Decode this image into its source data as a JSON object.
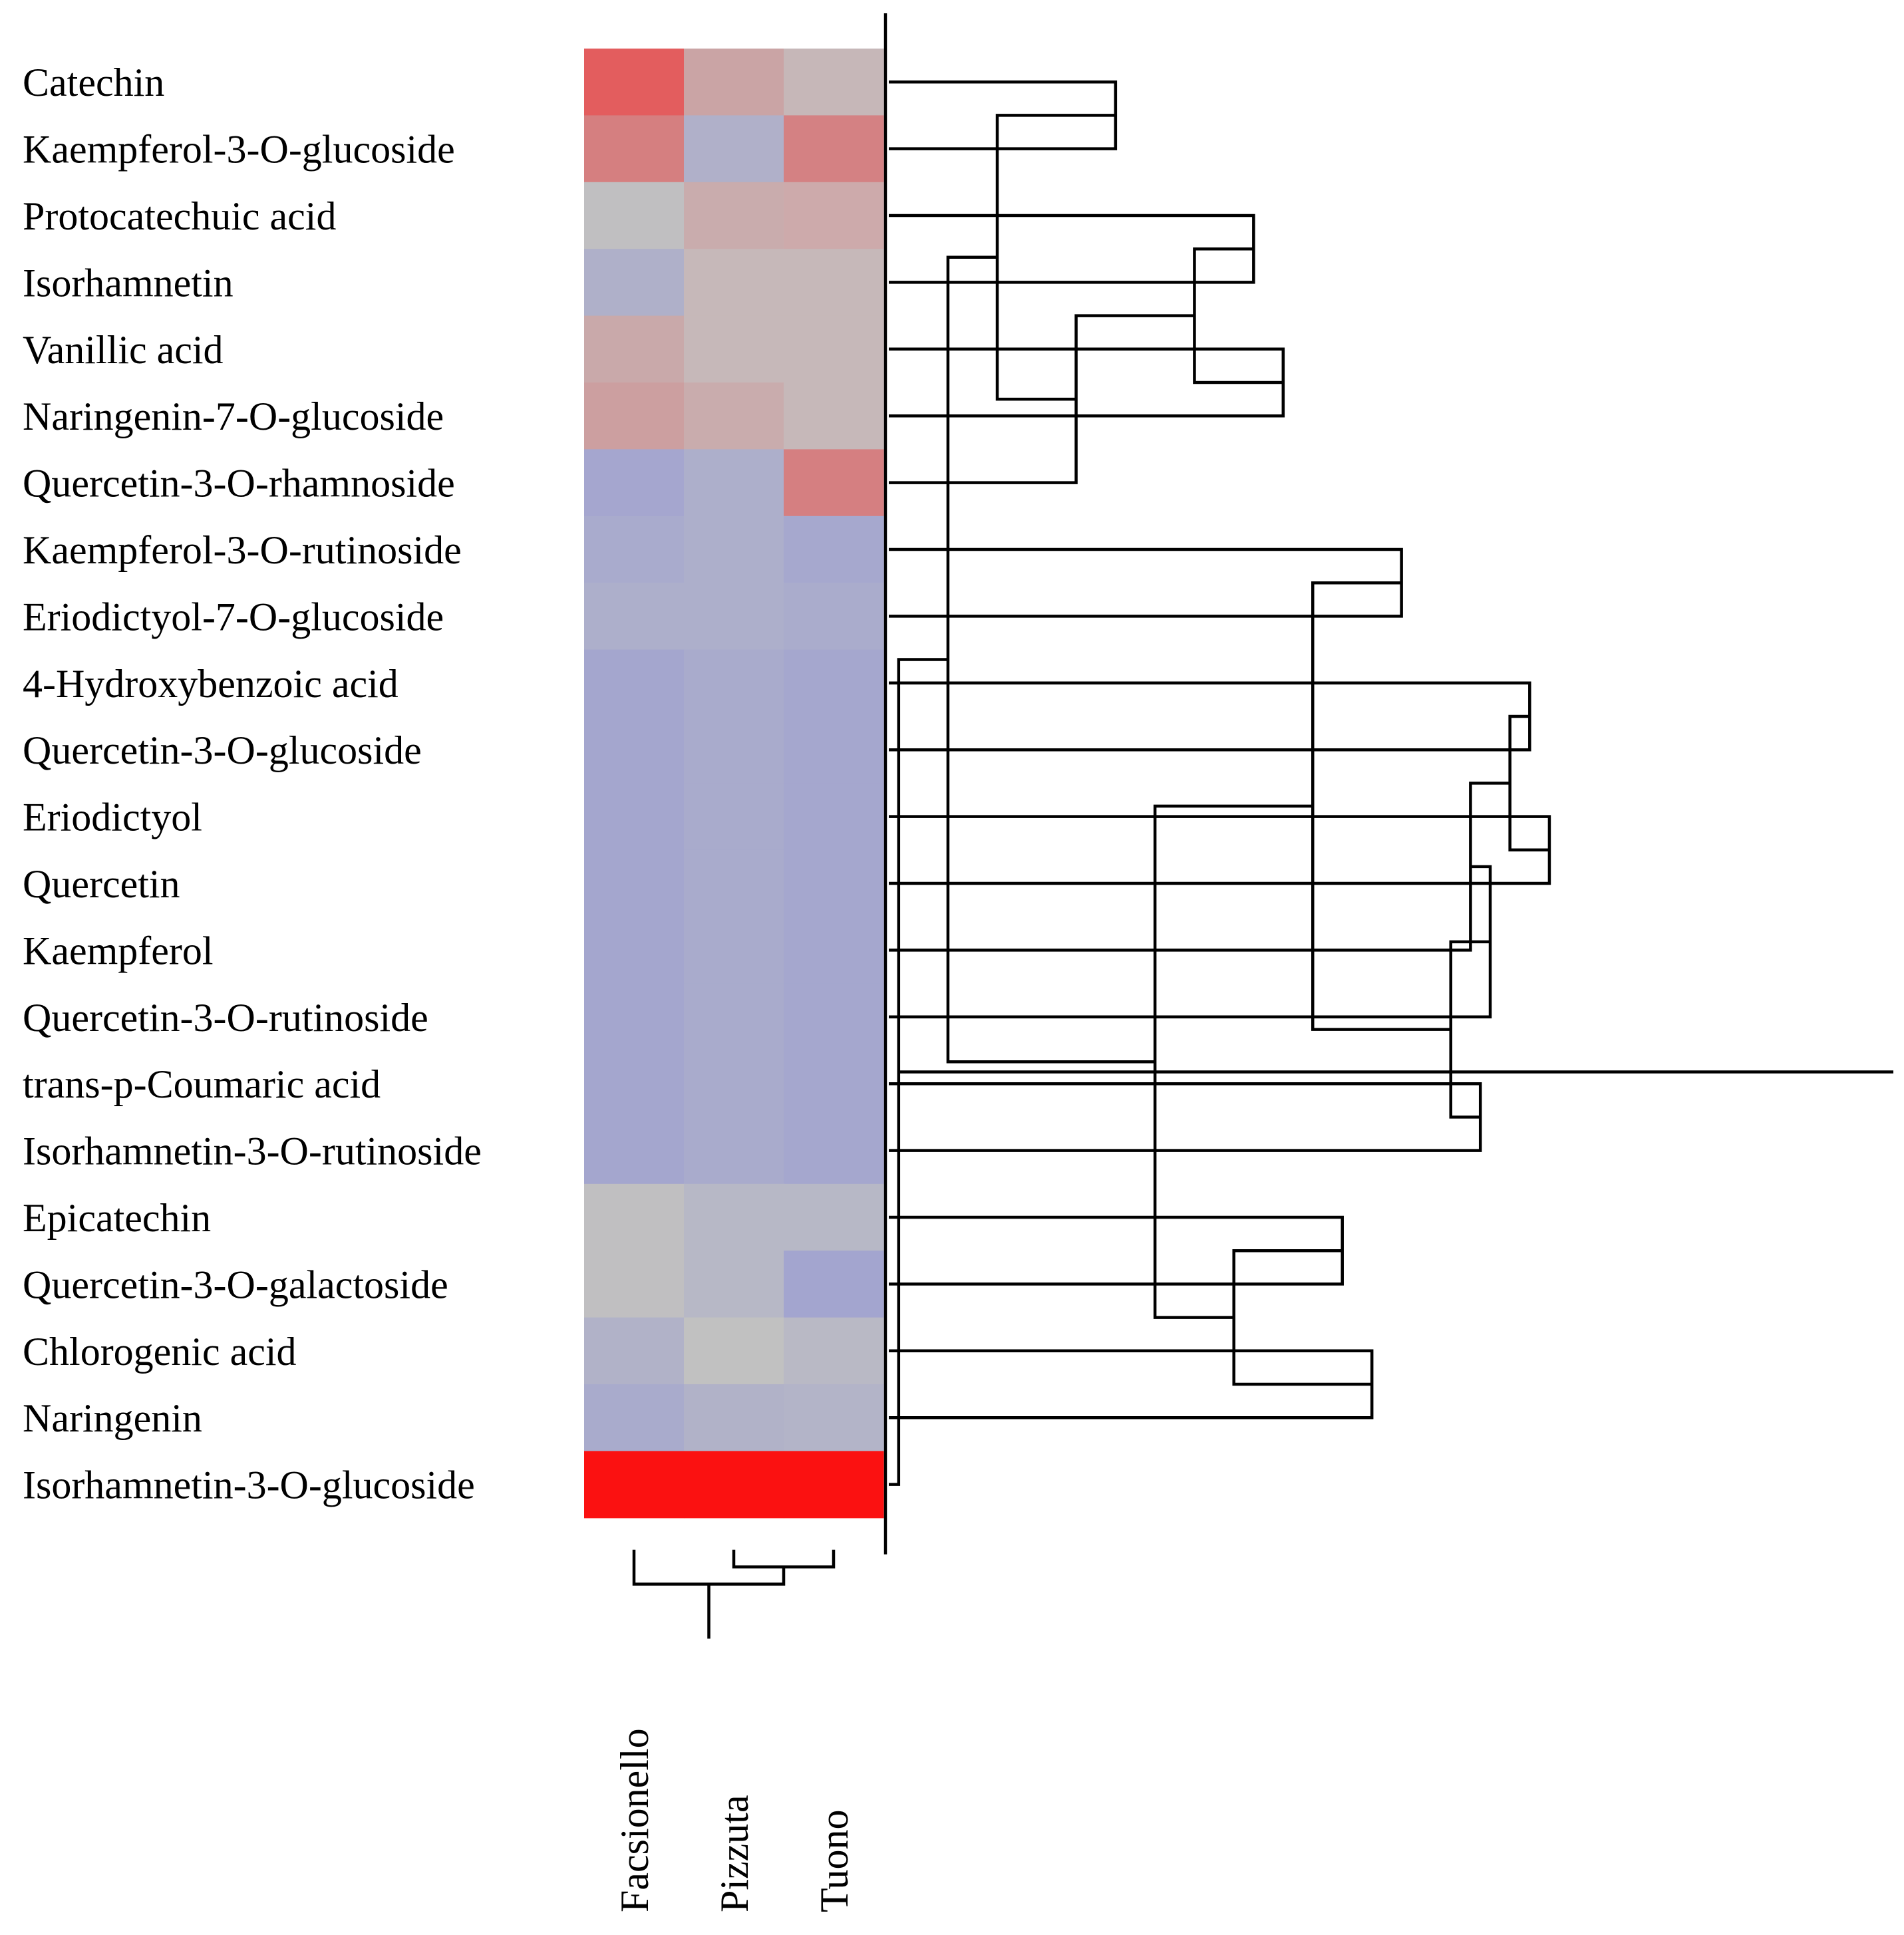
{
  "chart_data": {
    "type": "heatmap",
    "title": "",
    "columns": [
      "Facsionello",
      "Pizzuta",
      "Tuono"
    ],
    "rows": [
      "Catechin",
      "Kaempferol-3-O-glucoside",
      "Protocatechuic acid",
      "Isorhamnetin",
      "Vanillic acid",
      "Naringenin-7-O-glucoside",
      "Quercetin-3-O-rhamnoside",
      "Kaempferol-3-O-rutinoside",
      "Eriodictyol-7-O-glucoside",
      "4-Hydroxybenzoic acid",
      "Quercetin-3-O-glucoside",
      "Eriodictyol",
      "Quercetin",
      "Kaempferol",
      "Quercetin-3-O-rutinoside",
      "trans-p-Coumaric acid",
      "Isorhamnetin-3-O-rutinoside",
      "Epicatechin",
      "Quercetin-3-O-galactoside",
      "Chlorogenic acid",
      "Naringenin",
      "Isorhamnetin-3-O-glucoside"
    ],
    "cell_colors": [
      [
        "#e35d5e",
        "#caa4a5",
        "#c6b7b8"
      ],
      [
        "#d57f80",
        "#b0b0c9",
        "#d48183"
      ],
      [
        "#c0bfc1",
        "#c9acad",
        "#cdaaab"
      ],
      [
        "#afb0c9",
        "#c6b8b9",
        "#c6b8b9"
      ],
      [
        "#c9a9aa",
        "#c6b8b9",
        "#c6b8b9"
      ],
      [
        "#cc9fa0",
        "#c9acad",
        "#c6b8b9"
      ],
      [
        "#a5a6cf",
        "#adafcb",
        "#d57f81"
      ],
      [
        "#a9abcd",
        "#adafcb",
        "#a6a8ce"
      ],
      [
        "#adafcb",
        "#adafcb",
        "#aaaccc"
      ],
      [
        "#a4a6ce",
        "#a9abcc",
        "#a5a7ce"
      ],
      [
        "#a4a6ce",
        "#a9abcc",
        "#a5a7ce"
      ],
      [
        "#a4a6ce",
        "#a9abcc",
        "#a5a7ce"
      ],
      [
        "#a4a6ce",
        "#a9abcc",
        "#a5a7ce"
      ],
      [
        "#a4a6ce",
        "#a9abcc",
        "#a5a7ce"
      ],
      [
        "#a4a6ce",
        "#a9abcc",
        "#a5a7ce"
      ],
      [
        "#a4a6ce",
        "#a9abcc",
        "#a5a7ce"
      ],
      [
        "#a4a6ce",
        "#a9abcc",
        "#a5a7ce"
      ],
      [
        "#c0bfc1",
        "#b7b8c6",
        "#b7b8c6"
      ],
      [
        "#c0bfc1",
        "#b7b8c6",
        "#a3a5cf"
      ],
      [
        "#b1b2c8",
        "#c1c1c1",
        "#b9b9c5"
      ],
      [
        "#a9abcc",
        "#b1b2c8",
        "#b3b4c8"
      ],
      [
        "#fb1111",
        "#fb1111",
        "#fb1111"
      ]
    ],
    "row_dendrogram": [
      [
        0,
        1,
        0.23
      ],
      [
        2,
        3,
        0.37
      ],
      [
        4,
        5,
        0.4
      ],
      [
        23,
        24,
        0.31
      ],
      [
        25,
        6,
        0.19
      ],
      [
        22,
        26,
        0.11
      ],
      [
        7,
        8,
        0.52
      ],
      [
        9,
        10,
        0.65
      ],
      [
        11,
        12,
        0.67
      ],
      [
        29,
        30,
        0.63
      ],
      [
        31,
        13,
        0.59
      ],
      [
        32,
        14,
        0.61
      ],
      [
        15,
        16,
        0.6
      ],
      [
        33,
        34,
        0.57
      ],
      [
        28,
        35,
        0.43
      ],
      [
        17,
        18,
        0.46
      ],
      [
        19,
        20,
        0.49
      ],
      [
        37,
        38,
        0.35
      ],
      [
        36,
        39,
        0.27
      ],
      [
        27,
        40,
        0.06
      ],
      [
        41,
        21,
        0.01
      ]
    ],
    "column_dendrogram": [
      [
        1,
        2,
        0.15
      ],
      [
        0,
        3,
        0.3
      ]
    ]
  }
}
